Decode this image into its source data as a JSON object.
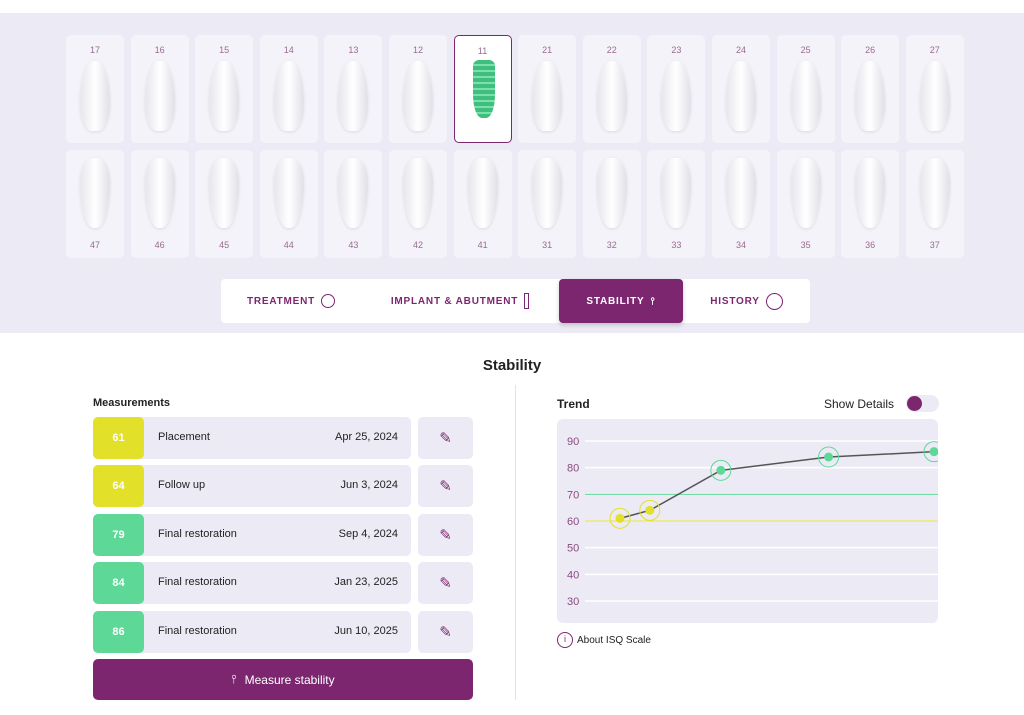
{
  "teeth": {
    "upper": [
      "17",
      "16",
      "15",
      "14",
      "13",
      "12",
      "11",
      "21",
      "22",
      "23",
      "24",
      "25",
      "26",
      "27"
    ],
    "lower": [
      "47",
      "46",
      "45",
      "44",
      "43",
      "42",
      "41",
      "31",
      "32",
      "33",
      "34",
      "35",
      "36",
      "37"
    ],
    "selected": "11"
  },
  "tabs": [
    {
      "label": "TREATMENT",
      "icon": "tooth-cycle-icon"
    },
    {
      "label": "IMPLANT & ABUTMENT",
      "icon": "implant-icon"
    },
    {
      "label": "STABILITY",
      "icon": "stability-probe-icon",
      "active": true
    },
    {
      "label": "HISTORY",
      "icon": "clock-icon"
    }
  ],
  "title": "Stability",
  "measurements": {
    "heading": "Measurements",
    "rows": [
      {
        "value": 61,
        "name": "Placement",
        "date": "Apr 25, 2024",
        "color": "#e3e02a"
      },
      {
        "value": 64,
        "name": "Follow up",
        "date": "Jun 3, 2024",
        "color": "#e3e02a"
      },
      {
        "value": 79,
        "name": "Final restoration",
        "date": "Sep 4, 2024",
        "color": "#5dd897"
      },
      {
        "value": 84,
        "name": "Final restoration",
        "date": "Jan 23, 2025",
        "color": "#5dd897"
      },
      {
        "value": 86,
        "name": "Final restoration",
        "date": "Jun 10, 2025",
        "color": "#5dd897"
      }
    ],
    "edit_icon": "pencil-icon",
    "measure_label": "Measure stability"
  },
  "trend": {
    "heading": "Trend",
    "show_details_label": "Show Details",
    "show_details_on": true,
    "about_label": "About ISQ Scale"
  },
  "chart_data": {
    "type": "line",
    "x": [
      "2024-04-25",
      "2024-06-03",
      "2024-09-04",
      "2025-01-23",
      "2025-06-10"
    ],
    "values": [
      61,
      64,
      79,
      84,
      86
    ],
    "yticks": [
      90,
      80,
      70,
      60,
      50,
      40,
      30
    ],
    "ylim": [
      20,
      98
    ],
    "thresholds": [
      {
        "value": 70,
        "color": "#5dd897"
      },
      {
        "value": 60,
        "color": "#e3e02a"
      }
    ],
    "line_color": "#555555",
    "accent": "#7d2670"
  }
}
